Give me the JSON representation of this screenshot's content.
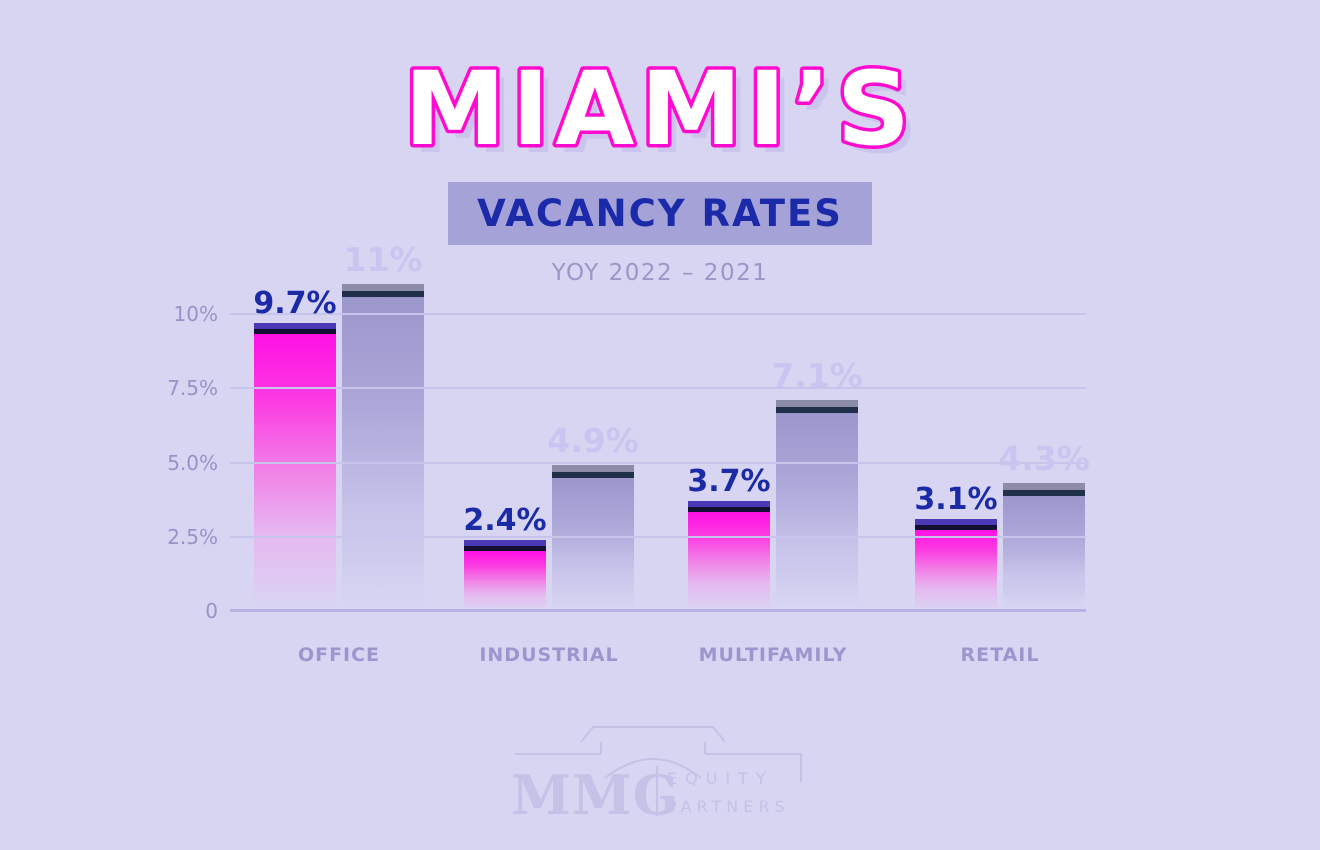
{
  "header": {
    "title": "MIAMI’S",
    "badge": "VACANCY RATES",
    "period": "YOY 2022 – 2021"
  },
  "colors": {
    "background": "#D8D5F3",
    "title_fill": "#FFFFFF",
    "title_outline": "#FF0BD0",
    "title_shadow": "#C9C5EC",
    "badge_background": "#A5A2D8",
    "badge_text": "#1B2AA8",
    "subtitle_text": "#9A96C8",
    "axis_text": "#9793C8",
    "category_text": "#9B97CE",
    "gridline": "#C8C5EC",
    "bar_2022_magenta": "#FF10E4",
    "bar_2022_cap_purple": "#4A38B6",
    "bar_2022_stripe_dark": "#120F33",
    "bar_2021_body": "#9B97CC",
    "bar_2021_cap_gray": "#8D8CA6",
    "bar_2021_stripe_navy": "#20304B",
    "value_label_2022": "#1B2BA6",
    "value_label_2021": "#C9C5F0",
    "logo_watermark": "#C5C1E7"
  },
  "chart_data": {
    "type": "bar",
    "title": "MIAMI’S VACANCY RATES",
    "subtitle": "YOY 2022 – 2021",
    "categories": [
      "OFFICE",
      "INDUSTRIAL",
      "MULTIFAMILY",
      "RETAIL"
    ],
    "series": [
      {
        "name": "2022",
        "color": "#FF10E4",
        "values": [
          9.7,
          2.4,
          3.7,
          3.1
        ],
        "labels": [
          "9.7%",
          "2.4%",
          "3.7%",
          "3.1%"
        ]
      },
      {
        "name": "2021",
        "color": "#9B97CC",
        "values": [
          11,
          4.9,
          7.1,
          4.3
        ],
        "labels": [
          "11%",
          "4.9%",
          "7.1%",
          "4.3%"
        ]
      }
    ],
    "yticks": [
      {
        "value": 0,
        "label": "0"
      },
      {
        "value": 2.5,
        "label": "2.5%"
      },
      {
        "value": 5,
        "label": "5.0%"
      },
      {
        "value": 7.5,
        "label": "7.5%"
      },
      {
        "value": 10,
        "label": "10%"
      }
    ],
    "xlabel": "",
    "ylabel": "",
    "ylim": [
      0,
      11.2
    ],
    "grid": true,
    "legend": "none"
  },
  "logo": {
    "brand": "MMG",
    "word1": "EQUITY",
    "word2": "PARTNERS"
  }
}
